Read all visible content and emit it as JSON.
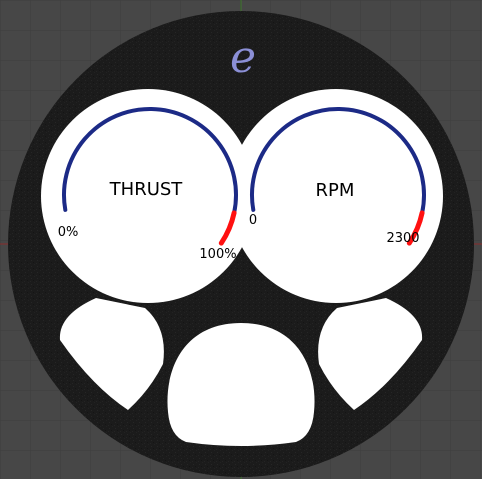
{
  "logo": {
    "text": "e",
    "color": "#8b8fd6"
  },
  "colors": {
    "background": "#474747",
    "grid_line": "#3d3d3d",
    "axis_red": "#8a2b2b",
    "axis_green": "#3f7a2c",
    "panel": "#1a1a1a",
    "face": "#ffffff",
    "arc_main": "#1c2a86",
    "arc_redline": "#ff1010"
  },
  "gauges": {
    "thrust": {
      "title": "THRUST",
      "min_label": "0%",
      "max_label": "100%",
      "value": 0
    },
    "rpm": {
      "title": "RPM",
      "min_label": "0",
      "max_label": "2300",
      "value": 0
    }
  }
}
